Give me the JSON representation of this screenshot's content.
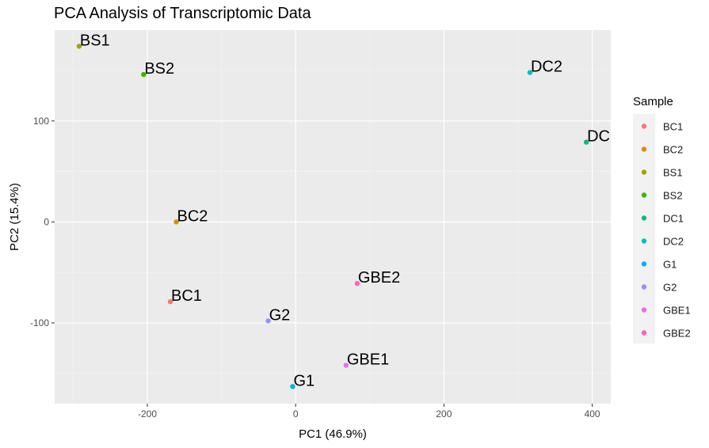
{
  "chart_data": {
    "type": "scatter",
    "title": "PCA Analysis of Transcriptomic Data",
    "xlabel": "PC1 (46.9%)",
    "ylabel": "PC2 (15.4%)",
    "xlim": [
      -325,
      425
    ],
    "ylim": [
      -180,
      190
    ],
    "xticks": [
      -200,
      0,
      200,
      400
    ],
    "yticks": [
      -100,
      0,
      100
    ],
    "grid": true,
    "legend_title": "Sample",
    "legend_position": "right",
    "points": [
      {
        "name": "BC1",
        "label": "BC1",
        "x": -169,
        "y": -79,
        "color": "#F8766D"
      },
      {
        "name": "BC2",
        "label": "BC2",
        "x": -161,
        "y": 0,
        "color": "#D89000"
      },
      {
        "name": "BS1",
        "label": "BS1",
        "x": -292,
        "y": 174,
        "color": "#A3A500"
      },
      {
        "name": "BS2",
        "label": "BS2",
        "x": -205,
        "y": 146,
        "color": "#39B600"
      },
      {
        "name": "DC1",
        "label": "DC",
        "x": 392,
        "y": 79,
        "color": "#00BF7D"
      },
      {
        "name": "DC2",
        "label": "DC2",
        "x": 316,
        "y": 148,
        "color": "#00BFC4"
      },
      {
        "name": "G1",
        "label": "G1",
        "x": -4,
        "y": -163,
        "color": "#00B0F6"
      },
      {
        "name": "G2",
        "label": "G2",
        "x": -37,
        "y": -98,
        "color": "#9590FF"
      },
      {
        "name": "GBE1",
        "label": "GBE1",
        "x": 68,
        "y": -142,
        "color": "#E76BF3"
      },
      {
        "name": "GBE2",
        "label": "GBE2",
        "x": 83,
        "y": -61,
        "color": "#FF62BC"
      }
    ]
  }
}
